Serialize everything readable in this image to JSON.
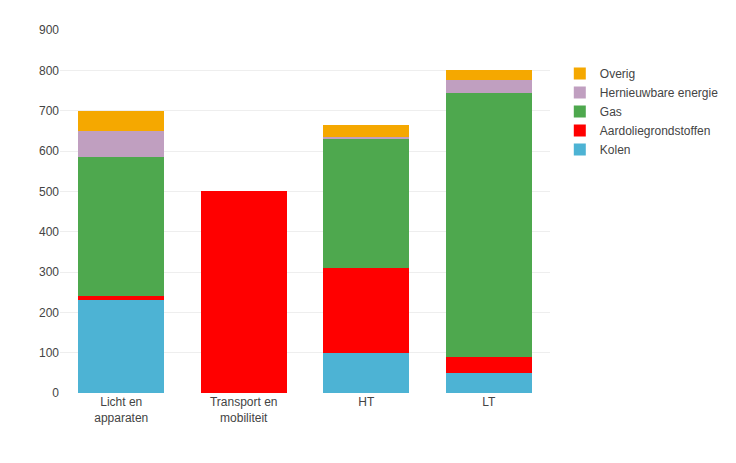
{
  "chart_data": {
    "type": "bar",
    "stacked": true,
    "categories": [
      "Licht en\napparaten",
      "Transport en\nmobiliteit",
      "HT",
      "LT"
    ],
    "series": [
      {
        "name": "Kolen",
        "color": "#4db3d4",
        "values": [
          230,
          0,
          100,
          50
        ]
      },
      {
        "name": "Aardoliegrondstoffen",
        "color": "#ff0000",
        "values": [
          10,
          500,
          210,
          40
        ]
      },
      {
        "name": "Gas",
        "color": "#4ea84e",
        "values": [
          345,
          0,
          320,
          655
        ]
      },
      {
        "name": "Hernieuwbare energie",
        "color": "#c09fc0",
        "values": [
          65,
          0,
          5,
          30
        ]
      },
      {
        "name": "Overig",
        "color": "#f5a800",
        "values": [
          50,
          0,
          30,
          25
        ]
      }
    ],
    "ylim": [
      0,
      900
    ],
    "yticks": [
      0,
      100,
      200,
      300,
      400,
      500,
      600,
      700,
      800,
      900
    ],
    "grid": true,
    "legend": "right"
  }
}
